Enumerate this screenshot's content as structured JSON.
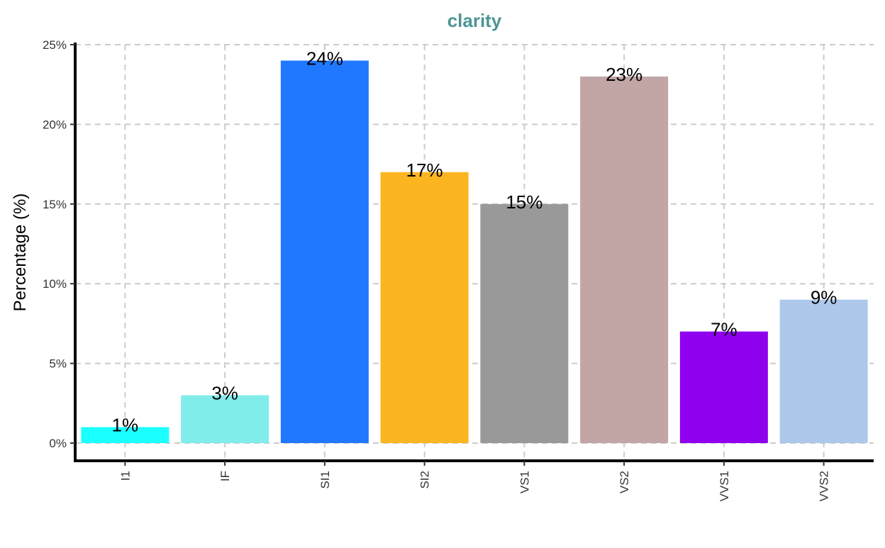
{
  "chart_data": {
    "type": "bar",
    "title": "clarity",
    "xlabel": "",
    "ylabel": "Percentage (%)",
    "categories": [
      "I1",
      "IF",
      "SI1",
      "SI2",
      "VS1",
      "VS2",
      "VVS1",
      "VVS2"
    ],
    "values": [
      1,
      3,
      24,
      17,
      15,
      23,
      7,
      9
    ],
    "data_labels": [
      "1%",
      "3%",
      "24%",
      "17%",
      "15%",
      "23%",
      "7%",
      "9%"
    ],
    "colors": [
      "#1AFFFF",
      "#80EDEA",
      "#1F78FF",
      "#FBB520",
      "#999999",
      "#C2A5A5",
      "#8E00EE",
      "#ADC8EA"
    ],
    "ylim": [
      0,
      25
    ],
    "yticks": [
      0,
      5,
      10,
      15,
      20,
      25
    ],
    "ytick_labels": [
      "0%",
      "5%",
      "10%",
      "15%",
      "20%",
      "25%"
    ],
    "title_color": "#4E9594",
    "grid": true,
    "legend": "none"
  }
}
